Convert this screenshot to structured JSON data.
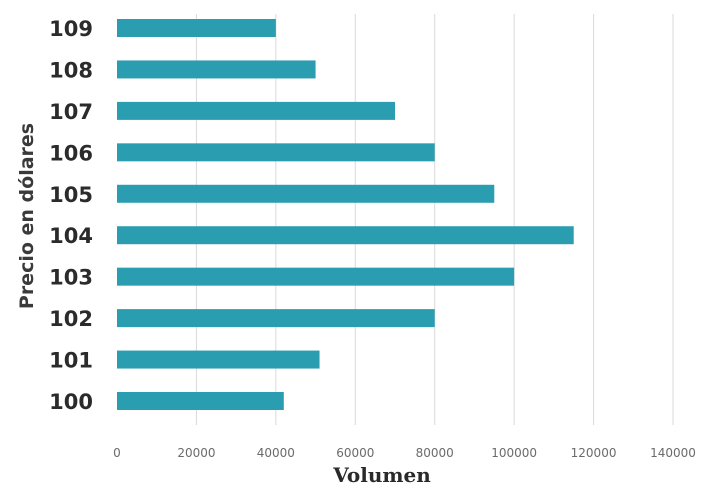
{
  "chart_data": {
    "type": "bar",
    "orientation": "horizontal",
    "categories": [
      "100",
      "101",
      "102",
      "103",
      "104",
      "105",
      "106",
      "107",
      "108",
      "109"
    ],
    "values": [
      42000,
      51000,
      80000,
      100000,
      115000,
      95000,
      80000,
      70000,
      50000,
      40000
    ],
    "xlabel": "Volumen",
    "ylabel": "Precio en dólares",
    "xlim": [
      0,
      140000
    ],
    "x_ticks": [
      "0",
      "20000",
      "40000",
      "60000",
      "80000",
      "100000",
      "120000",
      "140000"
    ],
    "grid": "vertical",
    "bar_color": "#2b9db1",
    "grid_color": "#d9d9d9"
  }
}
